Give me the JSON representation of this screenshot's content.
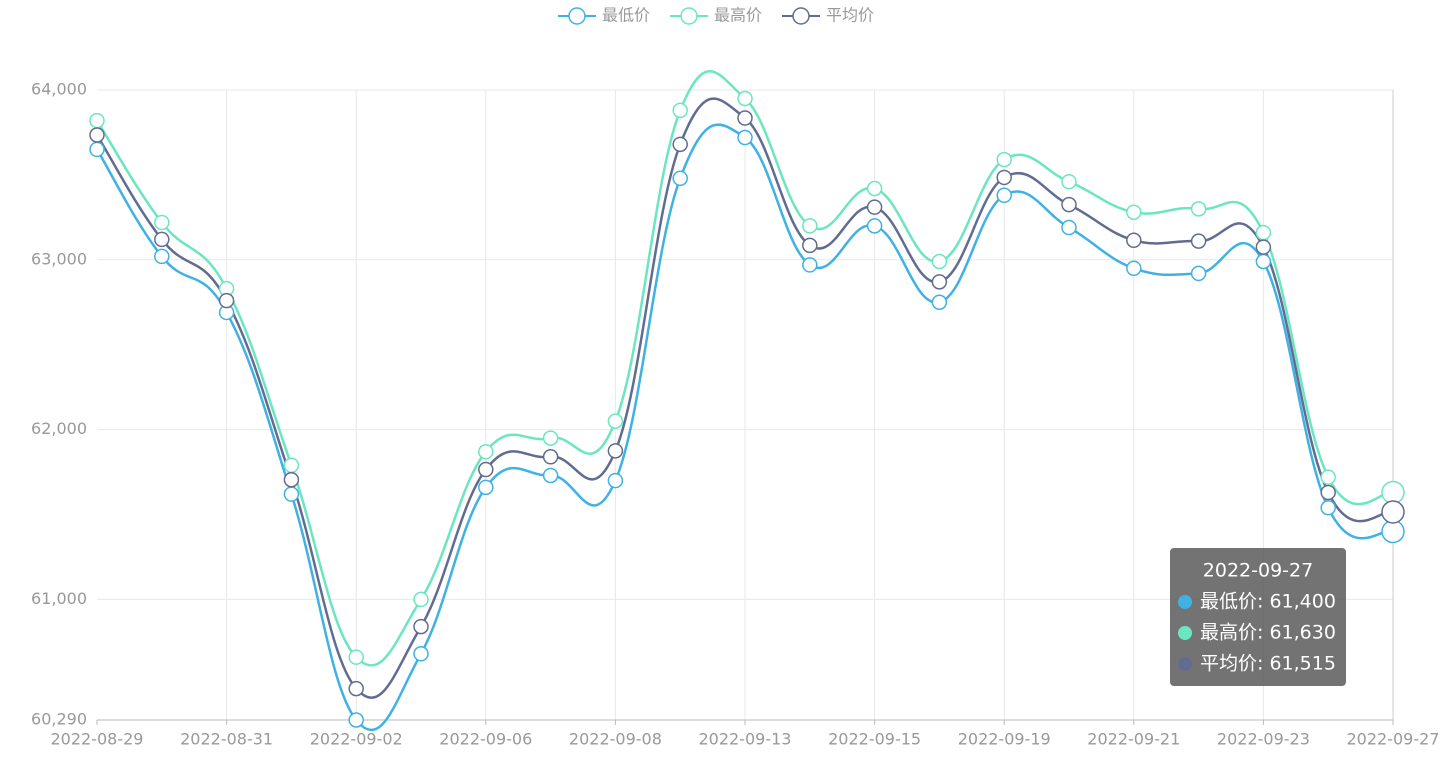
{
  "chart_data": {
    "type": "line",
    "categories": [
      "2022-08-29",
      null,
      "2022-08-31",
      null,
      "2022-09-02",
      null,
      "2022-09-06",
      null,
      "2022-09-08",
      null,
      "2022-09-13",
      null,
      "2022-09-15",
      null,
      "2022-09-19",
      null,
      "2022-09-21",
      null,
      "2022-09-23",
      null,
      "2022-09-27"
    ],
    "series": [
      {
        "name": "最低价",
        "color": "#3fb1e3",
        "values": [
          63650,
          63020,
          62690,
          61620,
          60290,
          60680,
          61660,
          61730,
          61700,
          63480,
          63720,
          62970,
          63200,
          62750,
          63380,
          63190,
          62950,
          62920,
          62990,
          61540,
          61400
        ]
      },
      {
        "name": "最高价",
        "color": "#6be6c1",
        "values": [
          63820,
          63220,
          62830,
          61790,
          60660,
          61000,
          61870,
          61950,
          62050,
          63880,
          63950,
          63200,
          63420,
          62990,
          63590,
          63460,
          63280,
          63300,
          63160,
          61720,
          61630
        ]
      },
      {
        "name": "平均价",
        "color": "#626c91",
        "values": [
          63735,
          63120,
          62760,
          61705,
          60475,
          60840,
          61765,
          61840,
          61875,
          63680,
          63835,
          63085,
          63310,
          62870,
          63485,
          63325,
          63115,
          63110,
          63075,
          61630,
          61515
        ]
      }
    ],
    "ylim": [
      60290,
      64000
    ],
    "yticks": [
      {
        "value": 60290,
        "label": "60,290"
      },
      {
        "value": 61000,
        "label": "61,000"
      },
      {
        "value": 62000,
        "label": "62,000"
      },
      {
        "value": 63000,
        "label": "63,000"
      },
      {
        "value": 64000,
        "label": "64,000"
      }
    ],
    "grid": true,
    "legend": "top",
    "tooltip": {
      "lines": [
        "最低价: 61,400",
        "最高价: 61,630",
        "平均价: 61,515"
      ]
    }
  }
}
